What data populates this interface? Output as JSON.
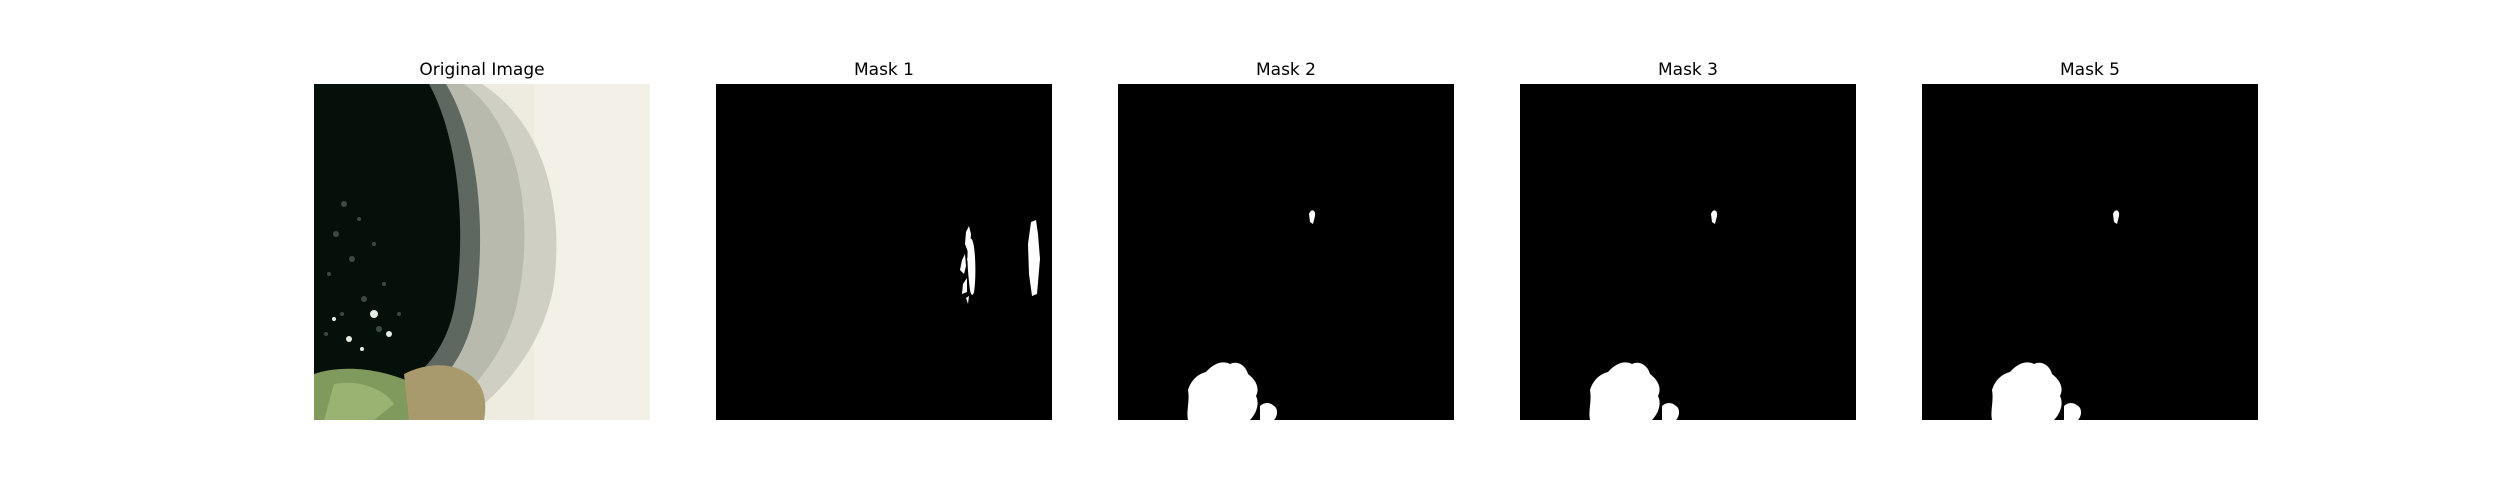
{
  "figure": {
    "panels": [
      {
        "title": "Original Image",
        "kind": "photo"
      },
      {
        "title": "Mask 1",
        "kind": "mask"
      },
      {
        "title": "Mask 2",
        "kind": "mask"
      },
      {
        "title": "Mask 3",
        "kind": "mask"
      },
      {
        "title": "Mask 5",
        "kind": "mask"
      }
    ]
  },
  "colors": {
    "mask_background": "#000000",
    "mask_foreground": "#ffffff",
    "photo_backdrop": "#eeece0",
    "pot_interior": "#06100b",
    "pot_rim": "#5f6761",
    "pot_body": "#cfd0c3",
    "leaf_green": "#7f9a5c",
    "leaf_brown": "#a89a6c"
  }
}
